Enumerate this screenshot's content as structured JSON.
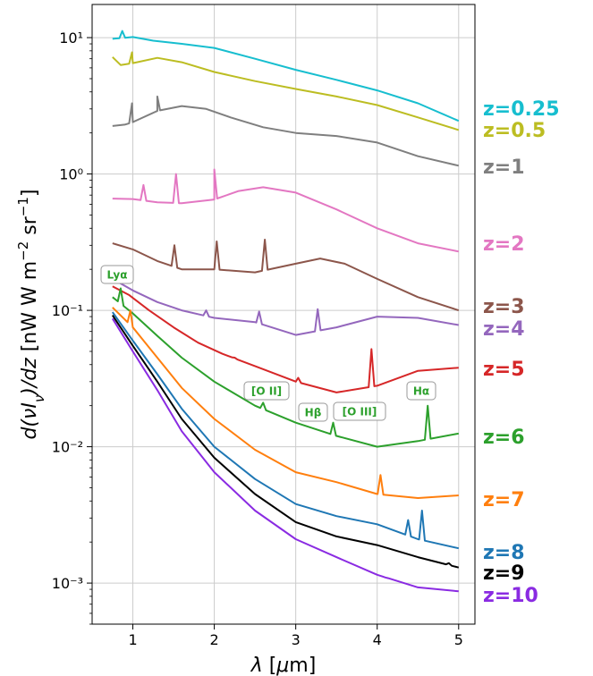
{
  "chart_data": {
    "type": "line",
    "xlabel": "λ [μm]",
    "ylabel": "d(νI_ν)/dz [nW m^-2 sr^-1]",
    "xlim": [
      0.5,
      5.2
    ],
    "ylim": [
      0.0005,
      17.5
    ],
    "yscale": "log",
    "grid": true,
    "x_ticks": [
      "1",
      "2",
      "3",
      "4",
      "5"
    ],
    "y_ticks": [
      {
        "value": 10,
        "label": "10¹"
      },
      {
        "value": 1,
        "label": "10⁰"
      },
      {
        "value": 0.1,
        "label": "10⁻¹"
      },
      {
        "value": 0.01,
        "label": "10⁻²"
      },
      {
        "value": 0.001,
        "label": "10⁻³"
      }
    ],
    "series": [
      {
        "name": "z=0.25",
        "color": "#17becf",
        "points": [
          [
            0.75,
            9.8
          ],
          [
            1.0,
            10.1
          ],
          [
            1.25,
            9.5
          ],
          [
            1.6,
            9.0
          ],
          [
            2.0,
            8.4
          ],
          [
            2.5,
            7.0
          ],
          [
            3.0,
            5.8
          ],
          [
            3.5,
            4.9
          ],
          [
            4.0,
            4.1
          ],
          [
            4.5,
            3.3
          ],
          [
            5.0,
            2.45
          ]
        ],
        "peaks": [
          [
            0.87,
            11.2
          ]
        ]
      },
      {
        "name": "z=0.5",
        "color": "#bcbd22",
        "points": [
          [
            0.75,
            7.2
          ],
          [
            0.85,
            6.3
          ],
          [
            1.0,
            6.5
          ],
          [
            1.3,
            7.1
          ],
          [
            1.6,
            6.6
          ],
          [
            2.0,
            5.6
          ],
          [
            2.5,
            4.8
          ],
          [
            3.0,
            4.2
          ],
          [
            3.5,
            3.7
          ],
          [
            4.0,
            3.2
          ],
          [
            4.5,
            2.6
          ],
          [
            5.0,
            2.1
          ]
        ],
        "peaks": [
          [
            0.99,
            7.8
          ]
        ]
      },
      {
        "name": "z=1",
        "color": "#7f7f7f",
        "points": [
          [
            0.75,
            2.25
          ],
          [
            0.9,
            2.3
          ],
          [
            1.0,
            2.4
          ],
          [
            1.3,
            2.9
          ],
          [
            1.6,
            3.15
          ],
          [
            1.9,
            3.0
          ],
          [
            2.2,
            2.6
          ],
          [
            2.6,
            2.2
          ],
          [
            3.0,
            2.0
          ],
          [
            3.5,
            1.9
          ],
          [
            4.0,
            1.7
          ],
          [
            4.5,
            1.35
          ],
          [
            5.0,
            1.15
          ]
        ],
        "peaks": [
          [
            0.99,
            3.3
          ],
          [
            1.3,
            3.7
          ]
        ]
      },
      {
        "name": "z=2",
        "color": "#e377c2",
        "points": [
          [
            0.75,
            0.66
          ],
          [
            1.0,
            0.655
          ],
          [
            1.3,
            0.62
          ],
          [
            1.6,
            0.61
          ],
          [
            2.0,
            0.65
          ],
          [
            2.3,
            0.75
          ],
          [
            2.6,
            0.8
          ],
          [
            3.0,
            0.73
          ],
          [
            3.5,
            0.55
          ],
          [
            4.0,
            0.4
          ],
          [
            4.5,
            0.31
          ],
          [
            5.0,
            0.27
          ]
        ],
        "peaks": [
          [
            1.13,
            0.83
          ],
          [
            1.53,
            1.0
          ],
          [
            2.0,
            1.08
          ]
        ]
      },
      {
        "name": "z=3",
        "color": "#8c564b",
        "points": [
          [
            0.75,
            0.31
          ],
          [
            1.0,
            0.28
          ],
          [
            1.3,
            0.23
          ],
          [
            1.6,
            0.2
          ],
          [
            2.0,
            0.2
          ],
          [
            2.5,
            0.19
          ],
          [
            3.0,
            0.22
          ],
          [
            3.3,
            0.24
          ],
          [
            3.6,
            0.22
          ],
          [
            4.0,
            0.17
          ],
          [
            4.5,
            0.125
          ],
          [
            5.0,
            0.1
          ]
        ],
        "peaks": [
          [
            1.51,
            0.3
          ],
          [
            2.03,
            0.32
          ],
          [
            2.62,
            0.33
          ]
        ]
      },
      {
        "name": "z=4",
        "color": "#9467bd",
        "points": [
          [
            0.75,
            0.17
          ],
          [
            1.0,
            0.14
          ],
          [
            1.3,
            0.115
          ],
          [
            1.6,
            0.1
          ],
          [
            2.0,
            0.088
          ],
          [
            2.5,
            0.082
          ],
          [
            3.0,
            0.066
          ],
          [
            3.5,
            0.075
          ],
          [
            4.0,
            0.09
          ],
          [
            4.5,
            0.088
          ],
          [
            5.0,
            0.078
          ]
        ],
        "peaks": [
          [
            1.9,
            0.1
          ],
          [
            2.55,
            0.098
          ],
          [
            3.27,
            0.102
          ]
        ]
      },
      {
        "name": "z=5",
        "color": "#d62728",
        "points": [
          [
            0.75,
            0.15
          ],
          [
            0.95,
            0.13
          ],
          [
            1.2,
            0.1
          ],
          [
            1.5,
            0.075
          ],
          [
            1.8,
            0.058
          ],
          [
            2.1,
            0.048
          ],
          [
            2.5,
            0.039
          ],
          [
            3.0,
            0.03
          ],
          [
            3.5,
            0.025
          ],
          [
            4.0,
            0.028
          ],
          [
            4.5,
            0.036
          ],
          [
            5.0,
            0.038
          ]
        ],
        "peaks": [
          [
            2.25,
            0.045
          ],
          [
            3.03,
            0.032
          ],
          [
            3.93,
            0.052
          ]
        ]
      },
      {
        "name": "z=6",
        "color": "#2ca02c",
        "points": [
          [
            0.75,
            0.125
          ],
          [
            1.0,
            0.095
          ],
          [
            1.3,
            0.065
          ],
          [
            1.6,
            0.045
          ],
          [
            2.0,
            0.03
          ],
          [
            2.5,
            0.02
          ],
          [
            3.0,
            0.015
          ],
          [
            3.5,
            0.012
          ],
          [
            4.0,
            0.01
          ],
          [
            4.5,
            0.011
          ],
          [
            5.0,
            0.0125
          ]
        ],
        "peaks": [
          [
            0.85,
            0.145
          ],
          [
            2.6,
            0.021
          ],
          [
            3.46,
            0.015
          ],
          [
            4.62,
            0.02
          ]
        ]
      },
      {
        "name": "z=7",
        "color": "#ff7f0e",
        "points": [
          [
            0.75,
            0.105
          ],
          [
            1.0,
            0.075
          ],
          [
            1.3,
            0.045
          ],
          [
            1.6,
            0.027
          ],
          [
            2.0,
            0.016
          ],
          [
            2.5,
            0.0095
          ],
          [
            3.0,
            0.0065
          ],
          [
            3.5,
            0.0055
          ],
          [
            4.0,
            0.0045
          ],
          [
            4.5,
            0.0042
          ],
          [
            5.0,
            0.0044
          ]
        ],
        "peaks": [
          [
            0.97,
            0.1
          ],
          [
            4.04,
            0.0062
          ]
        ]
      },
      {
        "name": "z=8",
        "color": "#1f77b4",
        "points": [
          [
            0.75,
            0.097
          ],
          [
            1.0,
            0.06
          ],
          [
            1.3,
            0.034
          ],
          [
            1.6,
            0.019
          ],
          [
            2.0,
            0.01
          ],
          [
            2.5,
            0.0058
          ],
          [
            3.0,
            0.0038
          ],
          [
            3.5,
            0.0031
          ],
          [
            4.0,
            0.0027
          ],
          [
            4.5,
            0.0021
          ],
          [
            5.0,
            0.0018
          ]
        ],
        "peaks": [
          [
            4.38,
            0.0029
          ],
          [
            4.55,
            0.0034
          ]
        ]
      },
      {
        "name": "z=9",
        "color": "#000000",
        "points": [
          [
            0.75,
            0.092
          ],
          [
            1.0,
            0.055
          ],
          [
            1.3,
            0.03
          ],
          [
            1.6,
            0.016
          ],
          [
            2.0,
            0.0083
          ],
          [
            2.5,
            0.0045
          ],
          [
            3.0,
            0.0028
          ],
          [
            3.5,
            0.0022
          ],
          [
            4.0,
            0.0019
          ],
          [
            4.5,
            0.00155
          ],
          [
            5.0,
            0.0013
          ]
        ],
        "peaks": [
          [
            4.88,
            0.0014
          ]
        ]
      },
      {
        "name": "z=10",
        "color": "#8a2be2",
        "points": [
          [
            0.75,
            0.087
          ],
          [
            1.0,
            0.05
          ],
          [
            1.3,
            0.026
          ],
          [
            1.6,
            0.013
          ],
          [
            2.0,
            0.0065
          ],
          [
            2.5,
            0.0034
          ],
          [
            3.0,
            0.0021
          ],
          [
            3.5,
            0.00155
          ],
          [
            4.0,
            0.00115
          ],
          [
            4.5,
            0.00093
          ],
          [
            5.0,
            0.00087
          ]
        ],
        "peaks": [
          [
            4.1,
            0.0011
          ]
        ]
      }
    ],
    "annotations": [
      "Lyα",
      "[O II]",
      "Hβ",
      "[O III]",
      "Hα"
    ]
  }
}
